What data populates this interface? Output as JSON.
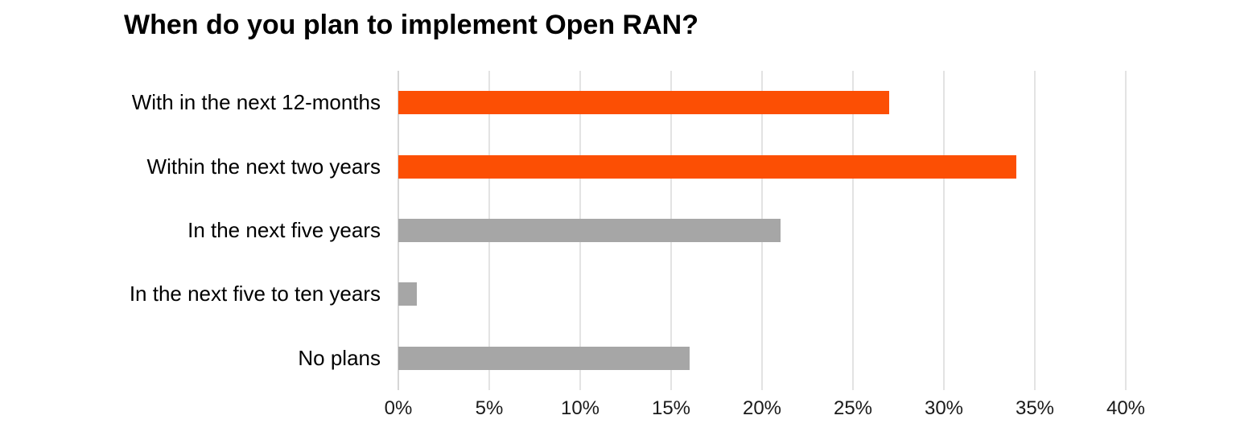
{
  "title": "When do you plan to implement Open RAN?",
  "colors": {
    "orange": "#FC4F04",
    "gray": "#A6A6A6",
    "gridline": "#E3E3E3",
    "axis_line": "#D6D6D6",
    "title_text": "#000000",
    "label_text": "#000000",
    "tick_text": "#1A1A1A",
    "background": "#FFFFFF"
  },
  "chart_data": {
    "type": "bar",
    "orientation": "horizontal",
    "title": "When do you plan to implement Open RAN?",
    "categories": [
      "With in the next 12-months",
      "Within the next two years",
      "In the next five years",
      "In the next five to ten years",
      "No plans"
    ],
    "values": [
      27,
      34,
      21,
      1,
      16
    ],
    "unit": "%",
    "bar_colors": [
      "#FC4F04",
      "#FC4F04",
      "#A6A6A6",
      "#A6A6A6",
      "#A6A6A6"
    ],
    "xlabel": "",
    "ylabel": "",
    "xlim": [
      0,
      40
    ],
    "x_tick_step": 5,
    "x_tick_labels": [
      "0%",
      "5%",
      "10%",
      "15%",
      "20%",
      "25%",
      "30%",
      "35%",
      "40%"
    ],
    "grid": "vertical-only",
    "legend": "none",
    "data_labels": "none"
  }
}
